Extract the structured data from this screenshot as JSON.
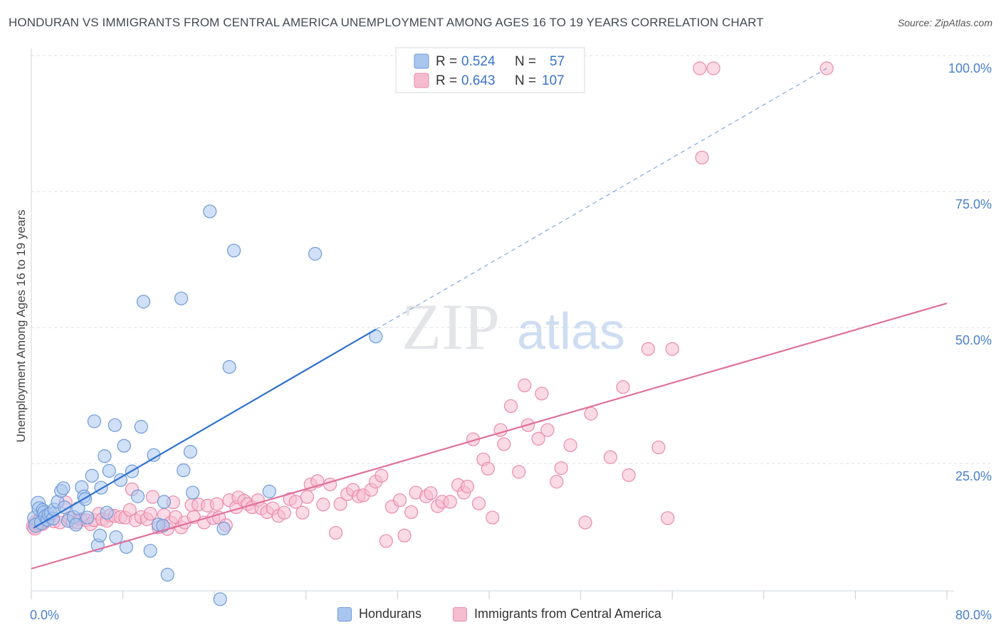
{
  "title": "HONDURAN VS IMMIGRANTS FROM CENTRAL AMERICA UNEMPLOYMENT AMONG AGES 16 TO 19 YEARS CORRELATION CHART",
  "source": "Source: ZipAtlas.com",
  "watermark": {
    "zip": "ZIP",
    "atlas": "atlas"
  },
  "colors": {
    "blue_fill": "#a9c6ef",
    "blue_stroke": "#6e9ad8",
    "blue_line": "#2e6fd0",
    "pink_fill": "#f5bcd0",
    "pink_stroke": "#ea8aab",
    "pink_line": "#e0709a",
    "axis_text": "#4a7fd0",
    "grid": "#d9dde3"
  },
  "stats_legend": [
    {
      "series": "Hondurans",
      "r_label": "R = ",
      "r_value": "0.524",
      "n_label": "N = ",
      "n_value": "57"
    },
    {
      "series": "Immigrants from Central America",
      "r_label": "R = ",
      "r_value": "0.643",
      "n_label": "N = ",
      "n_value": "107"
    }
  ],
  "chart_data": {
    "type": "scatter",
    "title": "HONDURAN VS IMMIGRANTS FROM CENTRAL AMERICA UNEMPLOYMENT AMONG AGES 16 TO 19 YEARS CORRELATION CHART",
    "xlabel": "",
    "ylabel": "Unemployment Among Ages 16 to 19 years",
    "xlim": [
      0,
      80
    ],
    "ylim": [
      0,
      102
    ],
    "x_tick_labels": [
      {
        "value": 0,
        "label": "0.0%"
      },
      {
        "value": 80,
        "label": "80.0%"
      }
    ],
    "y_tick_labels": [
      {
        "value": 25,
        "label": "25.0%"
      },
      {
        "value": 50,
        "label": "50.0%"
      },
      {
        "value": 75,
        "label": "75.0%"
      },
      {
        "value": 100,
        "label": "100.0%"
      }
    ],
    "legend": [
      "Hondurans",
      "Immigrants from Central America"
    ],
    "series": [
      {
        "name": "Hondurans",
        "r": 0.524,
        "n": 57,
        "trend": {
          "x1": 0.2,
          "y1": 15.5,
          "x2": 30.1,
          "y2": 52.0,
          "dash_x2": 69.5,
          "dash_y2": 100.0
        },
        "points": [
          [
            0.3,
            17.3
          ],
          [
            0.4,
            16.0
          ],
          [
            0.6,
            20.0
          ],
          [
            0.7,
            19.0
          ],
          [
            0.9,
            16.5
          ],
          [
            1.0,
            18.8
          ],
          [
            1.1,
            18.4
          ],
          [
            1.2,
            17.6
          ],
          [
            1.4,
            17.0
          ],
          [
            1.5,
            18.0
          ],
          [
            1.7,
            18.2
          ],
          [
            1.9,
            17.2
          ],
          [
            2.0,
            18.9
          ],
          [
            2.3,
            20.3
          ],
          [
            2.6,
            22.3
          ],
          [
            2.8,
            22.8
          ],
          [
            2.9,
            19.3
          ],
          [
            3.2,
            16.8
          ],
          [
            3.7,
            17.5
          ],
          [
            3.9,
            16.1
          ],
          [
            4.1,
            19.1
          ],
          [
            4.4,
            23.0
          ],
          [
            4.6,
            21.3
          ],
          [
            4.7,
            20.8
          ],
          [
            4.9,
            17.4
          ],
          [
            5.3,
            25.1
          ],
          [
            5.5,
            35.1
          ],
          [
            5.8,
            12.3
          ],
          [
            6.0,
            14.1
          ],
          [
            6.1,
            22.9
          ],
          [
            6.4,
            28.7
          ],
          [
            6.6,
            18.3
          ],
          [
            6.8,
            26.0
          ],
          [
            7.3,
            34.4
          ],
          [
            7.4,
            13.8
          ],
          [
            7.8,
            24.3
          ],
          [
            8.1,
            30.6
          ],
          [
            8.3,
            12.0
          ],
          [
            8.8,
            25.9
          ],
          [
            9.3,
            21.3
          ],
          [
            9.6,
            34.1
          ],
          [
            9.8,
            57.1
          ],
          [
            10.4,
            11.3
          ],
          [
            10.7,
            28.9
          ],
          [
            11.1,
            16.1
          ],
          [
            11.5,
            15.9
          ],
          [
            11.6,
            20.3
          ],
          [
            11.9,
            6.9
          ],
          [
            13.1,
            57.7
          ],
          [
            13.3,
            26.1
          ],
          [
            13.9,
            29.5
          ],
          [
            14.1,
            22.0
          ],
          [
            15.6,
            73.7
          ],
          [
            16.5,
            2.4
          ],
          [
            16.8,
            15.4
          ],
          [
            17.3,
            45.1
          ],
          [
            17.7,
            66.5
          ],
          [
            20.8,
            22.2
          ],
          [
            24.8,
            65.9
          ],
          [
            30.1,
            50.7
          ]
        ]
      },
      {
        "name": "Immigrants from Central America",
        "r": 0.643,
        "n": 107,
        "trend": {
          "x1": 0,
          "y1": 8.0,
          "x2": 80,
          "y2": 56.8
        },
        "points": [
          [
            0.2,
            15.8
          ],
          [
            0.3,
            15.5
          ],
          [
            0.4,
            16.5
          ],
          [
            0.6,
            16.3
          ],
          [
            0.8,
            17.0
          ],
          [
            1.0,
            16.2
          ],
          [
            1.3,
            16.8
          ],
          [
            1.6,
            17.4
          ],
          [
            2.0,
            16.7
          ],
          [
            2.5,
            16.5
          ],
          [
            3.0,
            20.2
          ],
          [
            3.3,
            17.3
          ],
          [
            3.6,
            16.6
          ],
          [
            4.0,
            16.5
          ],
          [
            4.3,
            17.1
          ],
          [
            4.8,
            16.9
          ],
          [
            5.2,
            16.2
          ],
          [
            5.5,
            16.9
          ],
          [
            5.9,
            18.1
          ],
          [
            6.2,
            17.1
          ],
          [
            6.6,
            16.8
          ],
          [
            6.9,
            17.8
          ],
          [
            7.3,
            17.7
          ],
          [
            7.8,
            17.5
          ],
          [
            8.2,
            17.4
          ],
          [
            8.6,
            18.8
          ],
          [
            8.8,
            22.6
          ],
          [
            9.1,
            16.9
          ],
          [
            9.6,
            17.5
          ],
          [
            10.1,
            17.1
          ],
          [
            10.4,
            18.1
          ],
          [
            10.6,
            21.2
          ],
          [
            11.1,
            15.6
          ],
          [
            11.6,
            17.9
          ],
          [
            11.9,
            15.3
          ],
          [
            12.2,
            16.5
          ],
          [
            12.4,
            20.2
          ],
          [
            12.6,
            17.5
          ],
          [
            13.1,
            15.6
          ],
          [
            13.4,
            16.5
          ],
          [
            14.0,
            19.7
          ],
          [
            14.2,
            17.5
          ],
          [
            14.6,
            19.8
          ],
          [
            15.1,
            16.5
          ],
          [
            15.4,
            19.6
          ],
          [
            15.9,
            17.3
          ],
          [
            16.2,
            19.9
          ],
          [
            16.4,
            17.4
          ],
          [
            17.0,
            16.0
          ],
          [
            17.3,
            20.6
          ],
          [
            17.9,
            19.3
          ],
          [
            18.1,
            21.1
          ],
          [
            18.6,
            20.5
          ],
          [
            18.9,
            19.9
          ],
          [
            19.3,
            19.3
          ],
          [
            19.8,
            20.6
          ],
          [
            20.1,
            19.1
          ],
          [
            20.6,
            18.4
          ],
          [
            21.1,
            19.1
          ],
          [
            21.6,
            17.7
          ],
          [
            22.1,
            18.3
          ],
          [
            22.6,
            20.8
          ],
          [
            23.1,
            20.3
          ],
          [
            23.7,
            18.3
          ],
          [
            24.1,
            21.2
          ],
          [
            24.4,
            23.5
          ],
          [
            25.0,
            24.1
          ],
          [
            25.5,
            19.8
          ],
          [
            26.1,
            23.5
          ],
          [
            26.6,
            14.6
          ],
          [
            27.0,
            19.9
          ],
          [
            27.6,
            21.7
          ],
          [
            28.1,
            22.5
          ],
          [
            28.6,
            21.3
          ],
          [
            29.0,
            21.5
          ],
          [
            29.7,
            22.5
          ],
          [
            30.1,
            24.0
          ],
          [
            30.6,
            25.1
          ],
          [
            31.0,
            13.1
          ],
          [
            31.5,
            19.4
          ],
          [
            32.2,
            20.6
          ],
          [
            32.6,
            14.1
          ],
          [
            33.2,
            18.4
          ],
          [
            33.6,
            22.0
          ],
          [
            34.5,
            21.3
          ],
          [
            34.9,
            21.9
          ],
          [
            35.5,
            19.5
          ],
          [
            35.9,
            20.3
          ],
          [
            36.6,
            20.3
          ],
          [
            37.3,
            23.4
          ],
          [
            37.8,
            22.0
          ],
          [
            38.1,
            23.1
          ],
          [
            38.6,
            31.8
          ],
          [
            39.1,
            20.0
          ],
          [
            39.5,
            28.1
          ],
          [
            39.9,
            26.4
          ],
          [
            40.3,
            17.4
          ],
          [
            41.0,
            33.5
          ],
          [
            41.3,
            30.9
          ],
          [
            41.9,
            37.9
          ],
          [
            42.6,
            25.8
          ],
          [
            43.1,
            41.7
          ],
          [
            43.4,
            34.4
          ],
          [
            44.3,
            31.9
          ],
          [
            44.6,
            40.2
          ],
          [
            45.1,
            33.5
          ],
          [
            45.9,
            24.0
          ],
          [
            46.3,
            26.5
          ],
          [
            47.1,
            30.7
          ],
          [
            48.4,
            16.5
          ],
          [
            48.9,
            36.5
          ],
          [
            50.6,
            28.5
          ],
          [
            51.7,
            41.4
          ],
          [
            52.2,
            25.2
          ],
          [
            53.9,
            48.4
          ],
          [
            54.8,
            30.3
          ],
          [
            55.6,
            17.3
          ],
          [
            56.0,
            48.4
          ],
          [
            58.4,
            100.0
          ],
          [
            58.6,
            83.6
          ],
          [
            59.6,
            100.0
          ],
          [
            69.5,
            100.0
          ]
        ]
      }
    ]
  }
}
